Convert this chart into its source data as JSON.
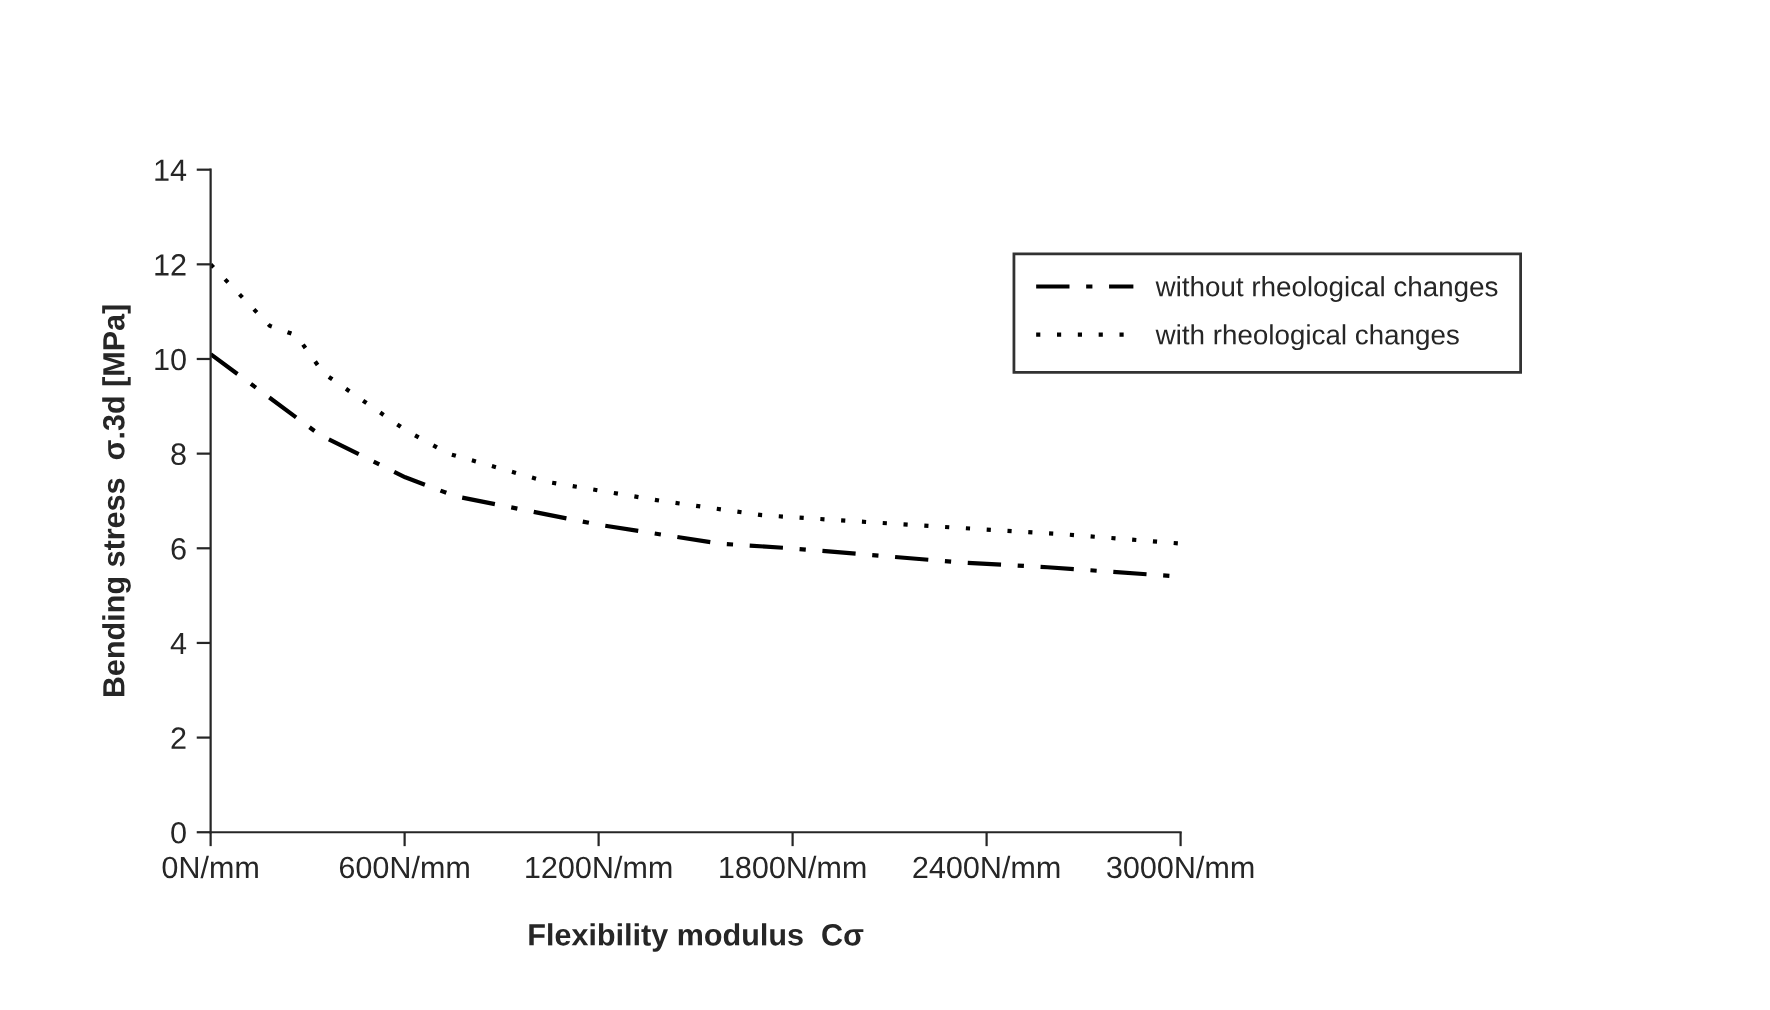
{
  "chart_data": {
    "type": "line",
    "xlabel": "Flexibility modulus  Cσ",
    "ylabel": "Bending stress  σ.3d [MPa]",
    "xlim": [
      0,
      3000
    ],
    "ylim": [
      0,
      14
    ],
    "xticks": [
      {
        "value": 0,
        "label": "0N/mm"
      },
      {
        "value": 600,
        "label": "600N/mm"
      },
      {
        "value": 1200,
        "label": "1200N/mm"
      },
      {
        "value": 1800,
        "label": "1800N/mm"
      },
      {
        "value": 2400,
        "label": "2400N/mm"
      },
      {
        "value": 3000,
        "label": "3000N/mm"
      }
    ],
    "yticks": [
      0,
      2,
      4,
      6,
      8,
      10,
      12,
      14
    ],
    "grid": false,
    "legend": "right",
    "marker": "none",
    "series": [
      {
        "name": "without rheological changes",
        "color": "#000000",
        "line_style": "dashdot",
        "x": [
          0,
          139,
          337,
          602,
          757,
          977,
          1198,
          1573,
          1793,
          2323,
          2588,
          3000
        ],
        "values": [
          10.1,
          9.4,
          8.4,
          7.5,
          7.1,
          6.8,
          6.5,
          6.1,
          6.0,
          5.7,
          5.6,
          5.4
        ]
      },
      {
        "name": "with rheological changes",
        "color": "#000000",
        "line_style": "dotted",
        "x": [
          0,
          183,
          265,
          349,
          602,
          735,
          1043,
          1220,
          1395,
          1705,
          1926,
          2389,
          2632,
          3000
        ],
        "values": [
          12.0,
          10.7,
          10.5,
          9.7,
          8.5,
          8.0,
          7.4,
          7.2,
          7.0,
          6.7,
          6.6,
          6.4,
          6.3,
          6.1
        ]
      }
    ]
  }
}
